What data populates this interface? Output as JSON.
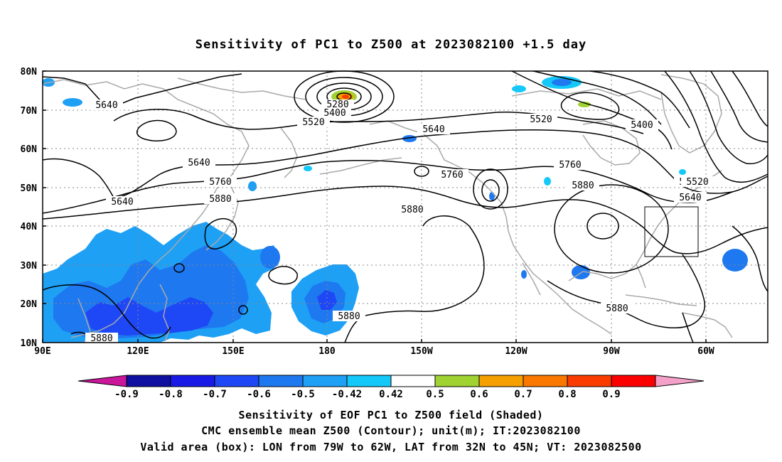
{
  "title": "Sensitivity of PC1 to Z500 at 2023082100 +1.5 day",
  "map": {
    "projection": "lat-lon",
    "lon_range": [
      "90E",
      "50W"
    ],
    "lat_range": [
      "10N",
      "80N"
    ],
    "grid": "dotted",
    "x_ticks": [
      "90E",
      "120E",
      "150E",
      "180",
      "150W",
      "120W",
      "90W",
      "60W"
    ],
    "y_ticks": [
      "80N",
      "70N",
      "60N",
      "50N",
      "40N",
      "30N",
      "20N",
      "10N"
    ],
    "coastline_color": "#a9a9a9",
    "contour_color": "#000000",
    "contour_labels": [
      "5640",
      "5640",
      "5640",
      "5640",
      "5520",
      "5400",
      "5280",
      "5640",
      "5520",
      "5400",
      "5760",
      "5880",
      "5760",
      "5880",
      "5880",
      "5880",
      "5760",
      "5880",
      "5640",
      "5520",
      "5880",
      "5880"
    ],
    "valid_box": {
      "lon": [
        "79W",
        "62W"
      ],
      "lat": [
        "32N",
        "45N"
      ]
    }
  },
  "colorbar": {
    "labels": [
      "-0.9",
      "-0.8",
      "-0.7",
      "-0.6",
      "-0.5",
      "-0.42",
      "0.42",
      "0.5",
      "0.6",
      "0.7",
      "0.8",
      "0.9"
    ],
    "colors": [
      "#c9169a",
      "#0f0fa0",
      "#1a1ae6",
      "#1e48f5",
      "#1e78f0",
      "#1ea0f5",
      "#14c8fa",
      "#ffffff",
      "#a0d232",
      "#f5a000",
      "#fa7800",
      "#fa3c00",
      "#fa0000",
      "#f5a0c8"
    ]
  },
  "captions": [
    "Sensitivity of EOF PC1 to Z500 field (Shaded)",
    "CMC ensemble mean Z500 (Contour); unit(m); IT:2023082100",
    "Valid area (box): LON from 79W to 62W, LAT from 32N to 45N; VT: 2023082500"
  ]
}
